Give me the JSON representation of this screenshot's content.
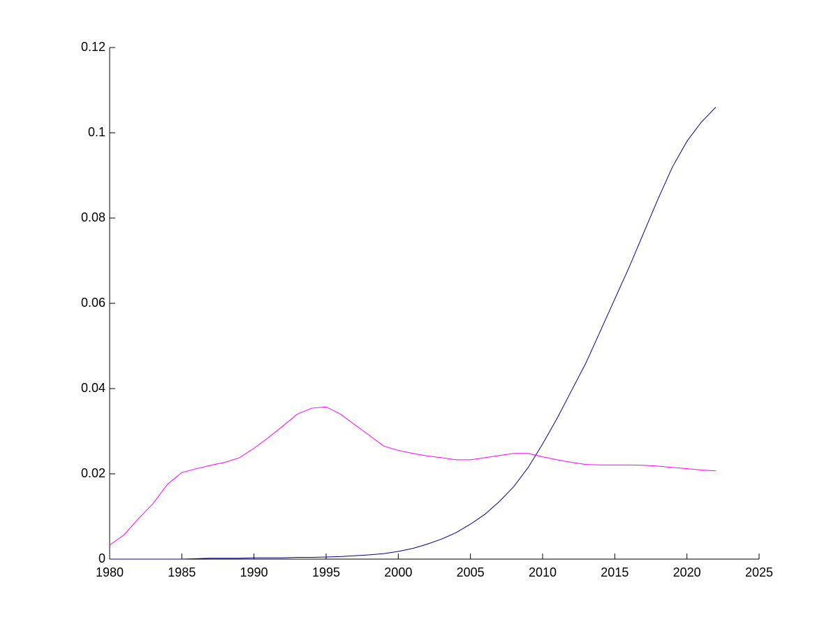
{
  "chart_data": {
    "type": "line",
    "x": [
      1980,
      1981,
      1982,
      1983,
      1984,
      1985,
      1986,
      1987,
      1988,
      1989,
      1990,
      1991,
      1992,
      1993,
      1994,
      1995,
      1996,
      1997,
      1998,
      1999,
      2000,
      2001,
      2002,
      2003,
      2004,
      2005,
      2006,
      2007,
      2008,
      2009,
      2010,
      2011,
      2012,
      2013,
      2014,
      2015,
      2016,
      2017,
      2018,
      2019,
      2020,
      2021,
      2022
    ],
    "series": [
      {
        "color": "#00008b",
        "values": [
          0,
          0,
          0,
          0,
          0,
          0,
          0.0001,
          0.0002,
          0.0002,
          0.0002,
          0.0003,
          0.0003,
          0.0003,
          0.0004,
          0.0004,
          0.0005,
          0.0006,
          0.0008,
          0.001,
          0.0013,
          0.0018,
          0.0025,
          0.0035,
          0.0047,
          0.0062,
          0.0082,
          0.0105,
          0.0135,
          0.017,
          0.0215,
          0.027,
          0.033,
          0.0395,
          0.046,
          0.0535,
          0.061,
          0.0685,
          0.0765,
          0.0845,
          0.092,
          0.098,
          0.1025,
          0.106
        ]
      },
      {
        "color": "#ff00ff",
        "values": [
          0.0033,
          0.0057,
          0.0095,
          0.013,
          0.0175,
          0.0203,
          0.0212,
          0.022,
          0.0227,
          0.0238,
          0.026,
          0.0285,
          0.0312,
          0.034,
          0.0354,
          0.0357,
          0.034,
          0.0315,
          0.029,
          0.0265,
          0.0255,
          0.0248,
          0.0242,
          0.0238,
          0.0233,
          0.0233,
          0.0238,
          0.0243,
          0.0248,
          0.0248,
          0.024,
          0.0233,
          0.0227,
          0.0222,
          0.0221,
          0.0221,
          0.0221,
          0.022,
          0.0218,
          0.0215,
          0.0212,
          0.0209,
          0.0207
        ]
      }
    ],
    "xlim": [
      1980,
      2025
    ],
    "xticks": [
      1980,
      1985,
      1990,
      1995,
      2000,
      2005,
      2010,
      2015,
      2020,
      2025
    ],
    "ylim": [
      0,
      0.12
    ],
    "yticks": [
      0,
      0.02,
      0.04,
      0.06,
      0.08,
      0.1,
      0.12
    ]
  }
}
